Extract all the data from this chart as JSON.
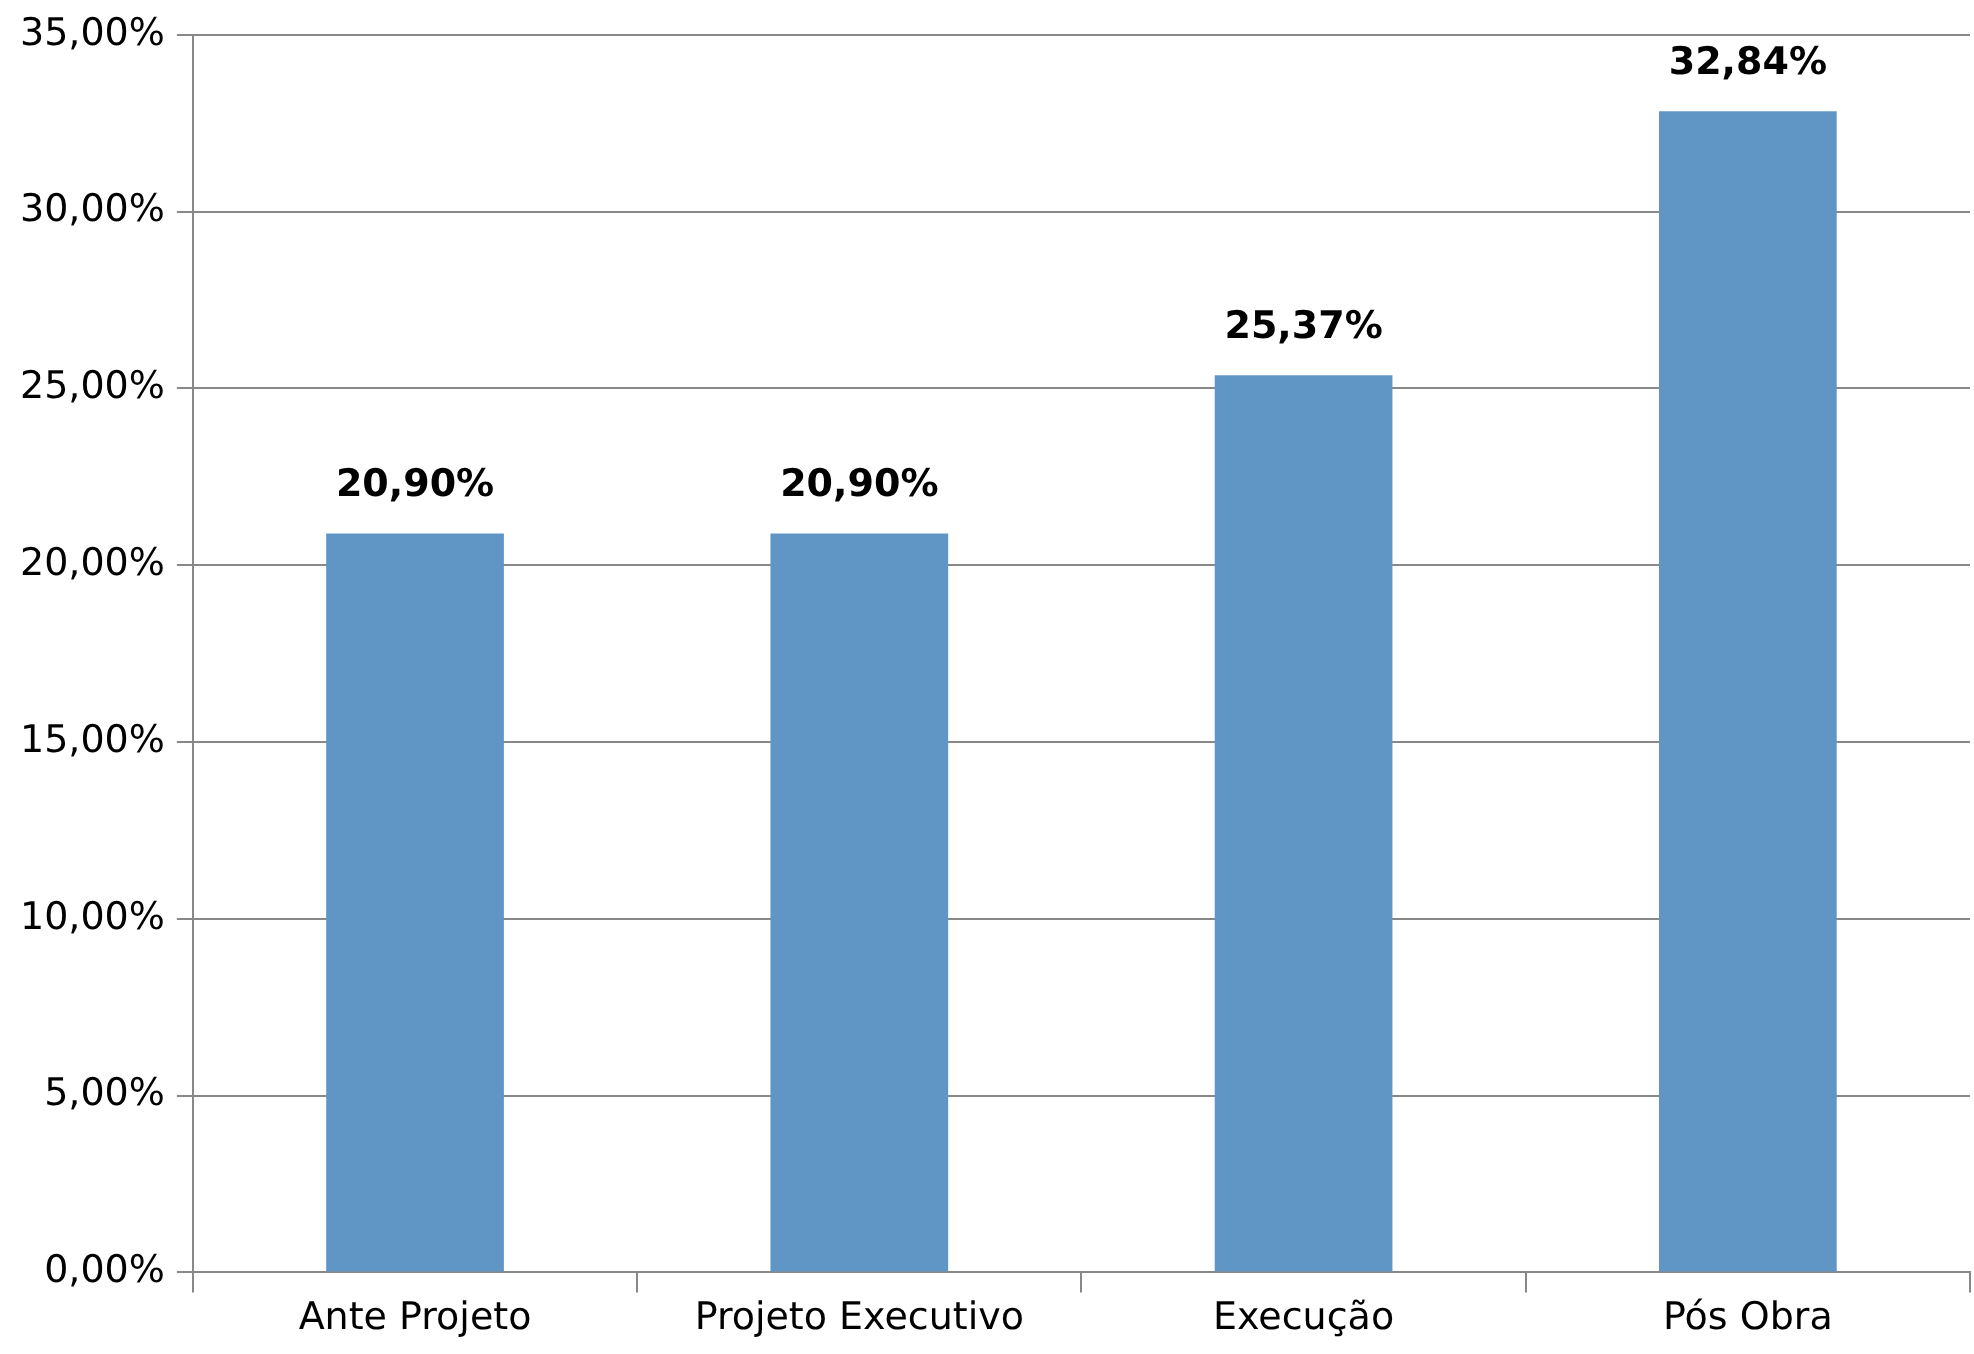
{
  "chart_data": {
    "type": "bar",
    "categories": [
      "Ante Projeto",
      "Projeto Executivo",
      "Execução",
      "Pós Obra"
    ],
    "values": [
      20.9,
      20.9,
      25.37,
      32.84
    ],
    "color": "#6096c6",
    "value_labels": [
      "20,90%",
      "20,90%",
      "25,37%",
      "32,84%"
    ],
    "ylim": [
      0,
      35
    ],
    "yticks": [
      {
        "value": 0,
        "label": "0,00%"
      },
      {
        "value": 5,
        "label": "5,00%"
      },
      {
        "value": 10,
        "label": "10,00%"
      },
      {
        "value": 15,
        "label": "15,00%"
      },
      {
        "value": 20,
        "label": "20,00%"
      },
      {
        "value": 25,
        "label": "25,00%"
      },
      {
        "value": 30,
        "label": "30,00%"
      },
      {
        "value": 35,
        "label": "35,00%"
      }
    ],
    "grid": "y",
    "legend": false
  }
}
